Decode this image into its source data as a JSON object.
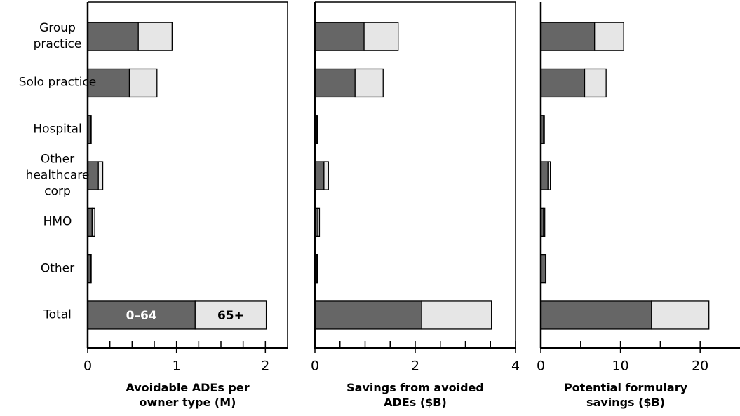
{
  "chart_data": [
    {
      "type": "bar",
      "orientation": "horizontal",
      "stacked": true,
      "xlabel": "Avoidable ADEs per owner type (M)",
      "categories": [
        "Group practice",
        "Solo practice",
        "Hospital",
        "Other healthcare corp",
        "HMO",
        "Other",
        "Total"
      ],
      "series": [
        {
          "name": "0–64",
          "color": "#666666",
          "values": [
            0.57,
            0.47,
            0.03,
            0.12,
            0.05,
            0.03,
            1.21
          ]
        },
        {
          "name": "65+",
          "color": "#e6e6e6",
          "values": [
            0.38,
            0.31,
            0.01,
            0.05,
            0.03,
            0.01,
            0.8
          ]
        }
      ],
      "xlim": [
        0,
        2.25
      ],
      "xticks": [
        0,
        1,
        2
      ],
      "xticks_minor": [
        0.25,
        0.5,
        0.75,
        1.25,
        1.5,
        1.75
      ]
    },
    {
      "type": "bar",
      "orientation": "horizontal",
      "stacked": true,
      "xlabel": "Savings from avoided ADEs ($B)",
      "series": [
        {
          "color": "#666666",
          "values": [
            0.98,
            0.8,
            0.04,
            0.18,
            0.06,
            0.04,
            2.13
          ]
        },
        {
          "color": "#e6e6e6",
          "values": [
            0.68,
            0.56,
            0.01,
            0.09,
            0.03,
            0.01,
            1.39
          ]
        }
      ],
      "xlim": [
        0,
        4
      ],
      "xticks": [
        0,
        2,
        4
      ],
      "xticks_minor": [
        0.5,
        1,
        1.5,
        2.5,
        3,
        3.5
      ]
    },
    {
      "type": "bar",
      "orientation": "horizontal",
      "stacked": true,
      "xlabel": "Potential formulary savings ($B)",
      "series": [
        {
          "color": "#666666",
          "values": [
            6.75,
            5.5,
            0.35,
            0.9,
            0.35,
            0.6,
            13.9
          ]
        },
        {
          "color": "#e6e6e6",
          "values": [
            3.65,
            2.7,
            0.1,
            0.3,
            0.15,
            0.05,
            7.2
          ]
        }
      ],
      "xlim": [
        0,
        25
      ],
      "xticks": [
        0,
        10,
        20
      ],
      "xticks_minor": [
        5,
        15
      ]
    }
  ]
}
